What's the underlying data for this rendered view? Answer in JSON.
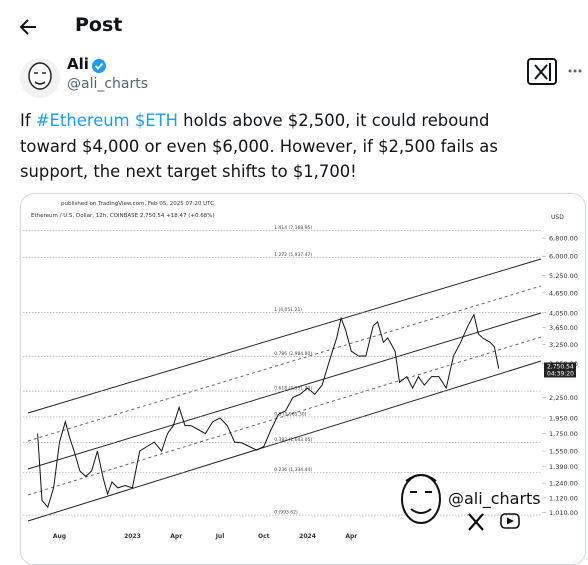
{
  "header": {
    "title": "Post"
  },
  "post": {
    "author": "Ali",
    "handle": "@ali_charts",
    "text": [
      {
        "text": "If ",
        "link": false
      },
      {
        "text": "#Ethereum $ETH",
        "link": true
      },
      {
        "text": " holds above $2,500, it could rebound toward $4,000 or even $6,000. However, if $2,500 fails as support, the next target shifts to $1,700!",
        "link": false
      }
    ]
  },
  "chart_data": {
    "type": "line",
    "published": "published on TradingView.com, Feb 05, 2025 07:20 UTC",
    "symbol": "Ethereum / U.S. Dollar, 12h, COINBASE  2,750.54  +18.47 (+0.68%)",
    "currency": "USD",
    "color": "#111111",
    "log_scale": true,
    "xlim": [
      4.5,
      40
    ],
    "xticks": [
      {
        "value": 7,
        "label": "Aug"
      },
      {
        "value": 12,
        "label": "2023"
      },
      {
        "value": 15,
        "label": "Apr"
      },
      {
        "value": 18,
        "label": "Jul"
      },
      {
        "value": 21,
        "label": "Oct"
      },
      {
        "value": 24,
        "label": "2024"
      },
      {
        "value": 27,
        "label": "Apr"
      }
    ],
    "ylim": [
      830,
      8500
    ],
    "yticks": [
      {
        "value": 6800,
        "label": "6,800.00"
      },
      {
        "value": 6000,
        "label": "6,000.00"
      },
      {
        "value": 5250,
        "label": "5,250.00"
      },
      {
        "value": 4650,
        "label": "4,650.00"
      },
      {
        "value": 4050,
        "label": "4,050.00"
      },
      {
        "value": 3650,
        "label": "3,650.00"
      },
      {
        "value": 3250,
        "label": "3,250.00"
      },
      {
        "value": 2850,
        "label": "2,850.00"
      },
      {
        "value": 2250,
        "label": "2,250.00"
      },
      {
        "value": 1950,
        "label": "1,950.00"
      },
      {
        "value": 1750,
        "label": "1,750.00"
      },
      {
        "value": 1550,
        "label": "1,550.00"
      },
      {
        "value": 1390,
        "label": "1,390.00"
      },
      {
        "value": 1240,
        "label": "1,240.00"
      },
      {
        "value": 1120,
        "label": "1,120.00"
      },
      {
        "value": 1010,
        "label": "1,010.00"
      }
    ],
    "fib_levels": [
      {
        "value": 7168.95,
        "label": "1.414 (7,168.95)"
      },
      {
        "value": 5937.47,
        "label": "1.272 (5,937.47)"
      },
      {
        "value": 4051.21,
        "label": "1 (4,051.21)"
      },
      {
        "value": 2984.8,
        "label": "0.786 (2,984.80)"
      },
      {
        "value": 2351.2,
        "label": "0.618 (2,351.20)"
      },
      {
        "value": 1965.3,
        "label": "0.5 (1,965.30)"
      },
      {
        "value": 1643.05,
        "label": "0.382 (1,643.05)"
      },
      {
        "value": 1334.44,
        "label": "0.236 (1,334.44)"
      },
      {
        "value": 993.62,
        "label": "0 (993.62)"
      }
    ],
    "last_price": {
      "value": 2750.54,
      "label": "2,750.54"
    },
    "countdown": "04:39:20",
    "watermark": "@ali_charts",
    "x": [
      5.5,
      5.8,
      6.2,
      6.6,
      7.0,
      7.4,
      7.7,
      8.0,
      8.4,
      8.8,
      9.2,
      9.6,
      10.0,
      10.3,
      10.6,
      11.0,
      11.5,
      12.0,
      12.5,
      13.0,
      13.5,
      14.0,
      14.4,
      14.8,
      15.2,
      15.6,
      16.0,
      16.5,
      17.0,
      17.5,
      18.0,
      18.5,
      19.0,
      19.5,
      20.0,
      20.5,
      21.0,
      21.5,
      22.0,
      22.5,
      23.0,
      23.5,
      24.0,
      24.5,
      25.0,
      25.5,
      26.0,
      26.3,
      26.6,
      27.0,
      27.5,
      28.0,
      28.5,
      28.8,
      29.2,
      29.5,
      30.0,
      30.3,
      30.8,
      31.2,
      31.6,
      32.0,
      32.5,
      33.0,
      33.5,
      34.0,
      34.5,
      35.0,
      35.4,
      35.7,
      36.0,
      36.5,
      36.8,
      37.1
    ],
    "values": [
      1750,
      1100,
      1050,
      1200,
      1650,
      1900,
      1700,
      1550,
      1350,
      1300,
      1350,
      1550,
      1280,
      1150,
      1250,
      1200,
      1220,
      1200,
      1550,
      1600,
      1650,
      1550,
      1750,
      1850,
      2100,
      1850,
      1850,
      1800,
      1750,
      1900,
      1950,
      1850,
      1650,
      1640,
      1600,
      1560,
      1600,
      1800,
      2000,
      2050,
      2250,
      2300,
      2400,
      2300,
      2450,
      2900,
      3400,
      3900,
      3600,
      3100,
      3000,
      3000,
      3700,
      3800,
      3300,
      3400,
      3100,
      2500,
      2600,
      2400,
      2600,
      2450,
      2600,
      2600,
      2400,
      3000,
      3300,
      3700,
      4000,
      3500,
      3400,
      3300,
      3200,
      2750
    ]
  }
}
